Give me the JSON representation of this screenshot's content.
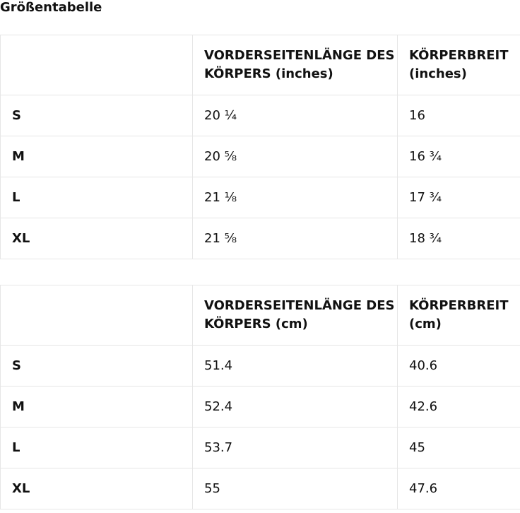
{
  "header": {
    "title": "Größentabelle"
  },
  "tables": [
    {
      "columns": [
        "VORDERSEITENLÄNGE DES KÖRPERS (inches)",
        "KÖRPERBREIT (inches)"
      ],
      "rows": [
        [
          "S",
          "20 ¼",
          "16"
        ],
        [
          "M",
          "20 ⅝",
          "16 ¾"
        ],
        [
          "L",
          "21 ⅛",
          "17 ¾"
        ],
        [
          "XL",
          "21 ⅝",
          "18 ¾"
        ]
      ]
    },
    {
      "columns": [
        "VORDERSEITENLÄNGE DES KÖRPERS (cm)",
        "KÖRPERBREIT (cm)"
      ],
      "rows": [
        [
          "S",
          "51.4",
          "40.6"
        ],
        [
          "M",
          "52.4",
          "42.6"
        ],
        [
          "L",
          "53.7",
          "45"
        ],
        [
          "XL",
          "55",
          "47.6"
        ]
      ]
    }
  ]
}
